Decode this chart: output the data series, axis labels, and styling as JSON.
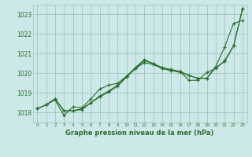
{
  "xlabel": "Graphe pression niveau de la mer (hPa)",
  "x_ticks": [
    0,
    1,
    2,
    3,
    4,
    5,
    6,
    7,
    8,
    9,
    10,
    11,
    12,
    13,
    14,
    15,
    16,
    17,
    18,
    19,
    20,
    21,
    22,
    23
  ],
  "ylim": [
    1017.5,
    1023.5
  ],
  "yticks": [
    1018,
    1019,
    1020,
    1021,
    1022,
    1023
  ],
  "background_color": "#cce8e8",
  "grid_color": "#a0c8c0",
  "line_color": "#2d6e2d",
  "series": [
    [
      1018.2,
      1018.4,
      1018.7,
      1018.1,
      1018.1,
      1018.15,
      1018.5,
      1018.8,
      1019.05,
      1019.35,
      1019.8,
      1020.25,
      1020.65,
      1020.5,
      1020.25,
      1020.15,
      1020.1,
      1019.9,
      1019.75,
      1019.75,
      1020.3,
      1020.6,
      1021.4,
      1023.3
    ],
    [
      1018.2,
      1018.4,
      1018.65,
      1017.85,
      1018.3,
      1018.25,
      1018.7,
      1019.2,
      1019.4,
      1019.5,
      1019.85,
      1020.3,
      1020.7,
      1020.5,
      1020.3,
      1020.2,
      1020.1,
      1019.65,
      1019.65,
      1020.05,
      1020.25,
      1020.65,
      1021.4,
      1023.3
    ],
    [
      1018.2,
      1018.4,
      1018.7,
      1018.1,
      1018.1,
      1018.2,
      1018.5,
      1018.85,
      1019.1,
      1019.4,
      1019.85,
      1020.25,
      1020.55,
      1020.45,
      1020.25,
      1020.15,
      1020.05,
      1019.9,
      1019.75,
      1019.75,
      1020.35,
      1021.35,
      1022.55,
      1022.7
    ]
  ]
}
